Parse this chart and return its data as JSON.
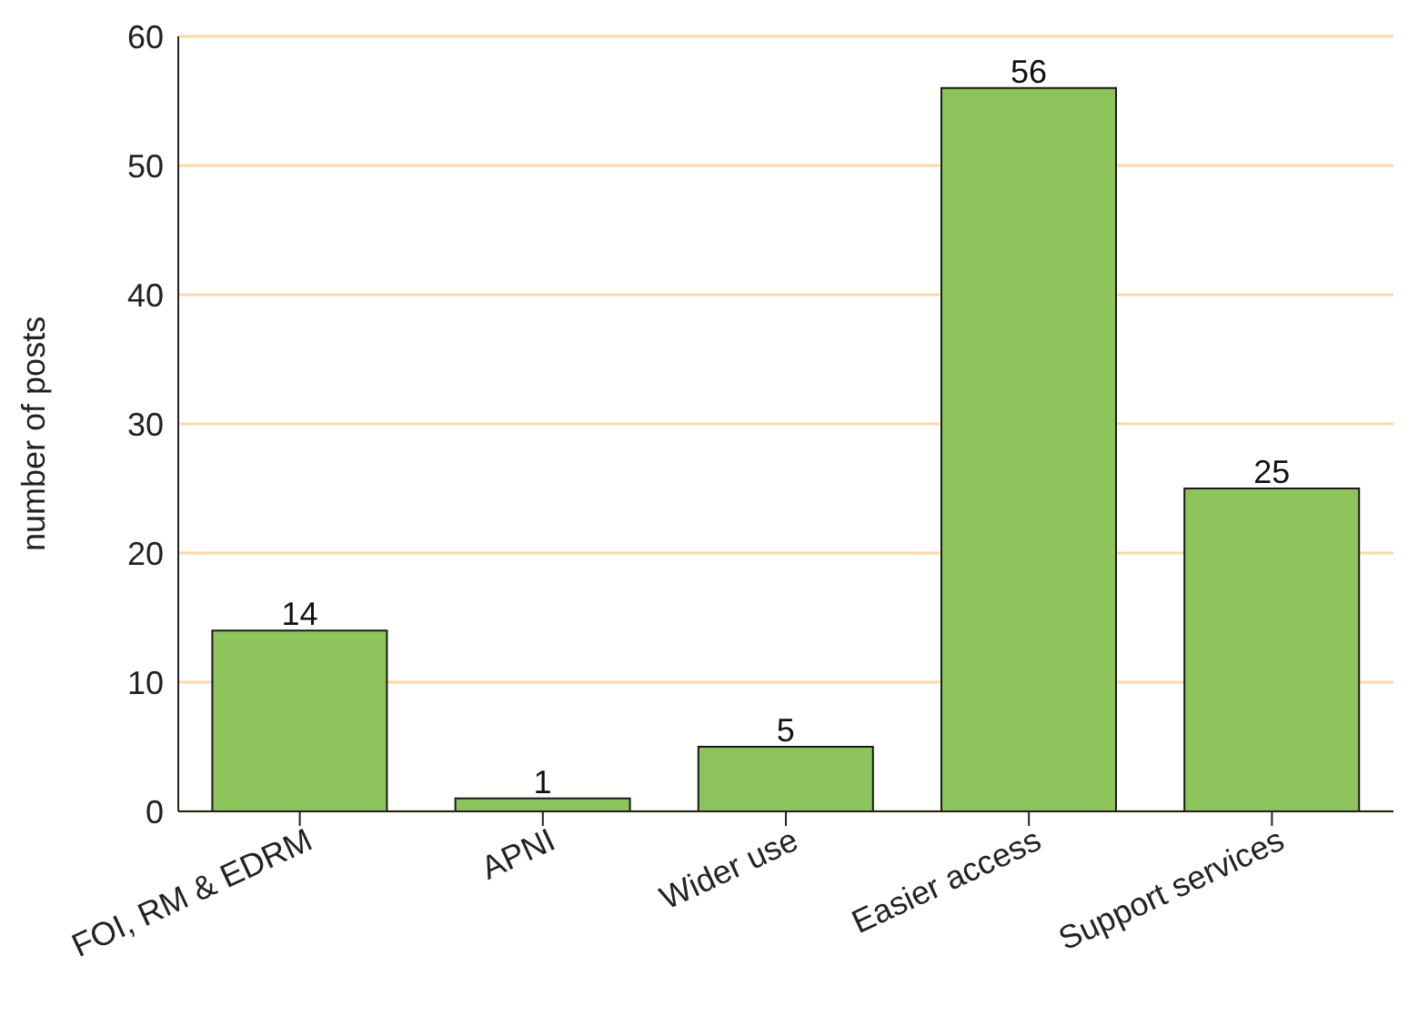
{
  "chart_data": {
    "type": "bar",
    "ylabel": "number of posts",
    "categories": [
      "FOI, RM & EDRM",
      "APNI",
      "Wider use",
      "Easier access",
      "Support services"
    ],
    "values": [
      14,
      1,
      5,
      56,
      25
    ],
    "color": "#8dc45b",
    "ylim": [
      0,
      60
    ],
    "yticks": [
      0,
      10,
      20,
      30,
      40,
      50,
      60
    ],
    "grid": "y",
    "data_labels": true
  }
}
